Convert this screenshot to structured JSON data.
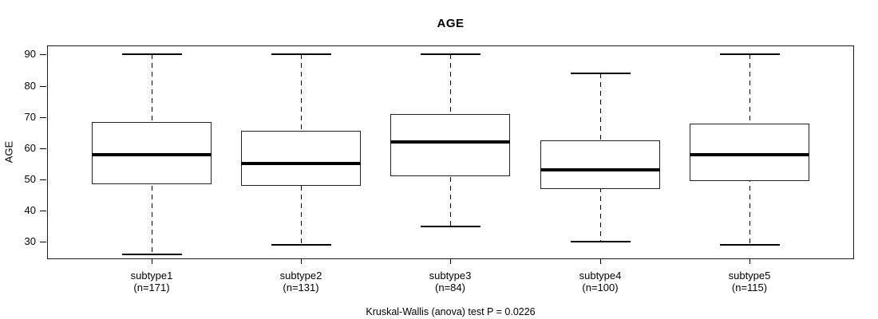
{
  "chart_data": {
    "type": "boxplot",
    "title": "AGE",
    "ylabel": "AGE",
    "xlabel": "",
    "footnote": "Kruskal-Wallis (anova) test P = 0.0226",
    "ylim": [
      24.5,
      92.9
    ],
    "yticks": [
      30,
      40,
      50,
      60,
      70,
      80,
      90
    ],
    "grid": false,
    "legend": "none",
    "groups": [
      {
        "label": "subtype1",
        "n": 171,
        "n_label": "(n=171)",
        "whisker_low": 26,
        "q1": 48.5,
        "median": 58,
        "q3": 68.5,
        "whisker_high": 90
      },
      {
        "label": "subtype2",
        "n": 131,
        "n_label": "(n=131)",
        "whisker_low": 29,
        "q1": 48,
        "median": 55,
        "q3": 65.5,
        "whisker_high": 90
      },
      {
        "label": "subtype3",
        "n": 84,
        "n_label": "(n=84)",
        "whisker_low": 35,
        "q1": 51,
        "median": 62,
        "q3": 71,
        "whisker_high": 90
      },
      {
        "label": "subtype4",
        "n": 100,
        "n_label": "(n=100)",
        "whisker_low": 30,
        "q1": 47,
        "median": 53,
        "q3": 62.5,
        "whisker_high": 84
      },
      {
        "label": "subtype5",
        "n": 115,
        "n_label": "(n=115)",
        "whisker_low": 29,
        "q1": 49.5,
        "median": 58,
        "q3": 68,
        "whisker_high": 90
      }
    ]
  }
}
